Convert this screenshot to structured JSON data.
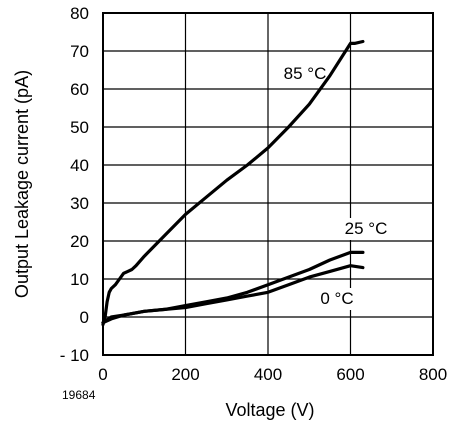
{
  "figure_number": "19684",
  "chart_data": {
    "type": "line",
    "xlabel": "Voltage (V)",
    "ylabel": "Output Leakage current (pA)",
    "xlim": [
      0,
      800
    ],
    "ylim": [
      -10,
      80
    ],
    "x_ticks": [
      0,
      200,
      400,
      600,
      800
    ],
    "x_tick_labels": [
      "0",
      "200",
      "400",
      "600",
      "800"
    ],
    "y_ticks": [
      -10,
      0,
      10,
      20,
      30,
      40,
      50,
      60,
      70,
      80
    ],
    "y_tick_labels": [
      "- 10",
      "0",
      "10",
      "20",
      "30",
      "40",
      "50",
      "60",
      "70",
      "80"
    ],
    "grid": true,
    "series": [
      {
        "name": "85 °C",
        "x": [
          0,
          5,
          10,
          15,
          20,
          30,
          40,
          50,
          60,
          70,
          80,
          100,
          150,
          200,
          250,
          300,
          350,
          400,
          450,
          500,
          550,
          600,
          610,
          630
        ],
        "y": [
          -2,
          0,
          4,
          6.5,
          7.5,
          8.5,
          10,
          11.5,
          12,
          12.5,
          13.5,
          16,
          21.5,
          27,
          31.5,
          36,
          40,
          44.5,
          50,
          56,
          63.5,
          72,
          72,
          72.5
        ]
      },
      {
        "name": "25 °C",
        "x": [
          0,
          20,
          50,
          100,
          150,
          200,
          250,
          300,
          350,
          400,
          450,
          500,
          550,
          600,
          630
        ],
        "y": [
          -1.5,
          0,
          0.5,
          1.5,
          2,
          3,
          4,
          5,
          6.5,
          8.5,
          10.5,
          12.5,
          15,
          17,
          17
        ]
      },
      {
        "name": "0 °C",
        "x": [
          0,
          20,
          50,
          100,
          150,
          200,
          250,
          300,
          350,
          400,
          450,
          500,
          550,
          600,
          630
        ],
        "y": [
          -1.5,
          -0.5,
          0.5,
          1.5,
          2,
          2.5,
          3.5,
          4.5,
          5.5,
          6.5,
          8.5,
          10.5,
          12,
          13.5,
          13
        ]
      }
    ]
  }
}
